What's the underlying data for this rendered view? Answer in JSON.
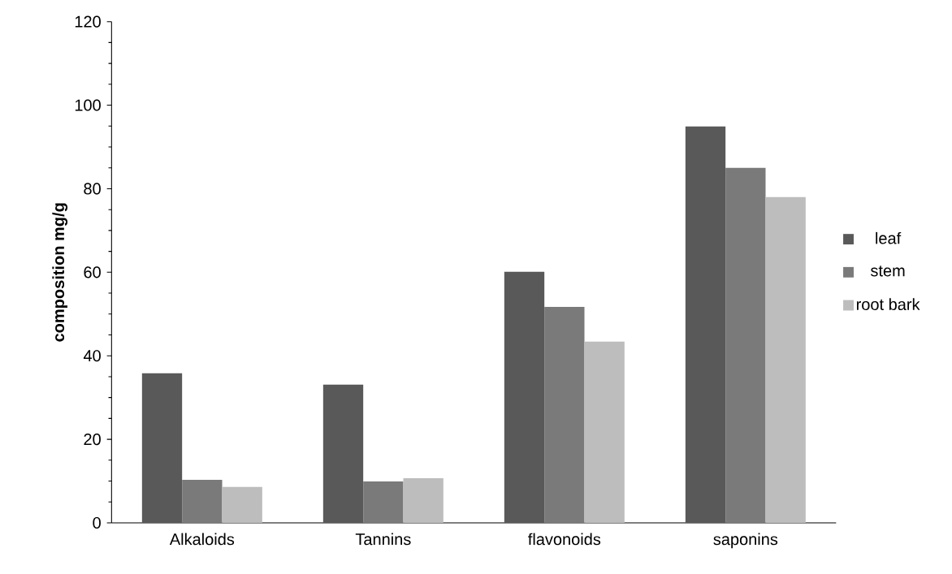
{
  "chart_data": {
    "type": "bar",
    "ylabel": "composition mg/g",
    "categories": [
      "Alkaloids",
      "Tannins",
      "flavonoids",
      "saponins"
    ],
    "series": [
      {
        "name": "leaf",
        "color": "#595959",
        "values": [
          35.8,
          33.1,
          60.1,
          94.9
        ]
      },
      {
        "name": "stem",
        "color": "#7a7a7a",
        "values": [
          10.3,
          9.9,
          51.7,
          85.0
        ]
      },
      {
        "name": "root bark",
        "color": "#bdbdbd",
        "values": [
          8.6,
          10.7,
          43.4,
          78.0
        ]
      }
    ],
    "ylim": [
      0,
      120
    ],
    "yticks": [
      0,
      20,
      40,
      60,
      80,
      100,
      120
    ],
    "grid": false,
    "legend": "right"
  }
}
